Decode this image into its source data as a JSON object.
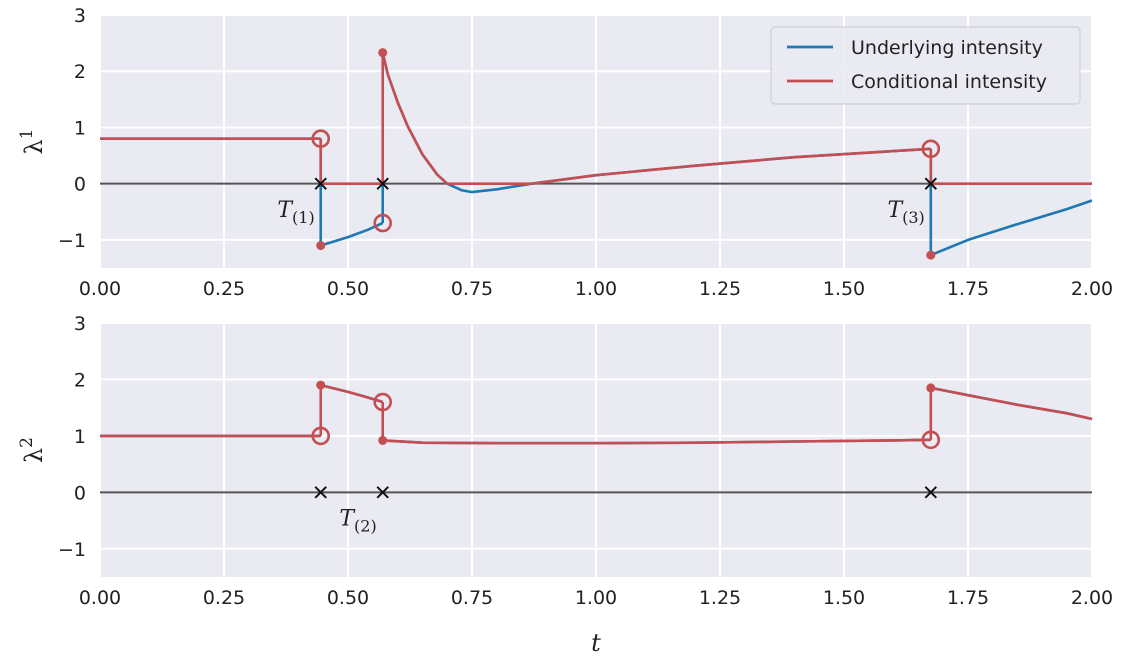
{
  "chart_data": [
    {
      "type": "line",
      "ylabel": "λ",
      "ylabel_sup": "1",
      "xlabel": "",
      "xlim": [
        0,
        2
      ],
      "ylim": [
        -1.5,
        3
      ],
      "xticks": [
        "0.00",
        "0.25",
        "0.50",
        "0.75",
        "1.00",
        "1.25",
        "1.50",
        "1.75",
        "2.00"
      ],
      "yticks": [
        "−1",
        "0",
        "1",
        "2",
        "3"
      ],
      "grid": true,
      "legend": {
        "placement": "top-right",
        "entries": [
          "Underlying intensity",
          "Conditional intensity"
        ]
      },
      "series": [
        {
          "name": "Underlying intensity",
          "color": "#1f77b4",
          "segments": [
            [
              [
                0,
                0.8
              ],
              [
                0.445,
                0.8
              ]
            ],
            [
              [
                0.445,
                -1.1
              ],
              [
                0.5,
                -0.95
              ],
              [
                0.54,
                -0.82
              ],
              [
                0.57,
                -0.7
              ]
            ],
            [
              [
                0.57,
                2.33
              ],
              [
                0.58,
                1.95
              ],
              [
                0.6,
                1.45
              ],
              [
                0.62,
                1.03
              ],
              [
                0.65,
                0.52
              ],
              [
                0.68,
                0.16
              ],
              [
                0.7,
                0.0
              ],
              [
                0.73,
                -0.12
              ],
              [
                0.75,
                -0.15
              ],
              [
                0.8,
                -0.1
              ],
              [
                0.87,
                0.0
              ],
              [
                1.0,
                0.15
              ],
              [
                1.2,
                0.32
              ],
              [
                1.4,
                0.47
              ],
              [
                1.6,
                0.58
              ],
              [
                1.675,
                0.62
              ]
            ],
            [
              [
                1.675,
                -1.27
              ],
              [
                1.75,
                -1.0
              ],
              [
                1.85,
                -0.72
              ],
              [
                1.95,
                -0.45
              ],
              [
                2.0,
                -0.3
              ]
            ]
          ]
        },
        {
          "name": "Conditional intensity",
          "color": "#c44e52",
          "segments": [
            [
              [
                0,
                0.8
              ],
              [
                0.445,
                0.8
              ]
            ],
            [
              [
                0.445,
                0
              ],
              [
                0.57,
                0
              ]
            ],
            [
              [
                0.57,
                2.33
              ],
              [
                0.58,
                1.95
              ],
              [
                0.6,
                1.45
              ],
              [
                0.62,
                1.03
              ],
              [
                0.65,
                0.52
              ],
              [
                0.68,
                0.16
              ],
              [
                0.7,
                0.0
              ],
              [
                0.87,
                0.0
              ],
              [
                1.0,
                0.15
              ],
              [
                1.2,
                0.32
              ],
              [
                1.4,
                0.47
              ],
              [
                1.6,
                0.58
              ],
              [
                1.675,
                0.62
              ]
            ],
            [
              [
                1.675,
                0
              ],
              [
                2.0,
                0
              ]
            ]
          ]
        }
      ],
      "jumps": [
        {
          "x": 0.445,
          "from": 0.8,
          "to": -1.1,
          "color": "#1f77b4"
        },
        {
          "x": 0.445,
          "from": 0.8,
          "to": 0,
          "color": "#c44e52"
        },
        {
          "x": 0.57,
          "from": -0.7,
          "to": 0,
          "color": "#1f77b4"
        },
        {
          "x": 0.57,
          "from": 0,
          "to": 2.33,
          "color": "#c44e52"
        },
        {
          "x": 1.675,
          "from": 0.62,
          "to": -1.27,
          "color": "#1f77b4"
        },
        {
          "x": 1.675,
          "from": 0.62,
          "to": 0,
          "color": "#c44e52"
        }
      ],
      "open_markers": [
        [
          0.445,
          0.8
        ],
        [
          0.57,
          -0.7
        ],
        [
          1.675,
          0.62
        ]
      ],
      "closed_markers": [
        [
          0.445,
          -1.1
        ],
        [
          0.57,
          2.33
        ],
        [
          1.675,
          -1.27
        ]
      ],
      "events": [
        0.445,
        0.57,
        1.675
      ],
      "annotations": [
        {
          "text": "T",
          "sub": "(1)",
          "x": 0.445,
          "y": -0.45
        },
        {
          "text": "T",
          "sub": "(3)",
          "x": 1.675,
          "y": -0.45
        }
      ]
    },
    {
      "type": "line",
      "ylabel": "λ",
      "ylabel_sup": "2",
      "xlabel": "t",
      "xlim": [
        0,
        2
      ],
      "ylim": [
        -1.5,
        3
      ],
      "xticks": [
        "0.00",
        "0.25",
        "0.50",
        "0.75",
        "1.00",
        "1.25",
        "1.50",
        "1.75",
        "2.00"
      ],
      "yticks": [
        "−1",
        "0",
        "1",
        "2",
        "3"
      ],
      "grid": true,
      "series": [
        {
          "name": "Underlying intensity",
          "color": "#1f77b4",
          "segments": [
            [
              [
                0,
                1.0
              ],
              [
                0.445,
                1.0
              ]
            ],
            [
              [
                0.445,
                1.9
              ],
              [
                0.5,
                1.78
              ],
              [
                0.54,
                1.68
              ],
              [
                0.57,
                1.6
              ]
            ],
            [
              [
                0.57,
                0.92
              ],
              [
                0.65,
                0.88
              ],
              [
                0.8,
                0.87
              ],
              [
                1.0,
                0.87
              ],
              [
                1.2,
                0.88
              ],
              [
                1.4,
                0.9
              ],
              [
                1.6,
                0.92
              ],
              [
                1.675,
                0.93
              ]
            ],
            [
              [
                1.675,
                1.85
              ],
              [
                1.75,
                1.72
              ],
              [
                1.85,
                1.55
              ],
              [
                1.95,
                1.4
              ],
              [
                2.0,
                1.3
              ]
            ]
          ]
        },
        {
          "name": "Conditional intensity",
          "color": "#c44e52",
          "segments": [
            [
              [
                0,
                1.0
              ],
              [
                0.445,
                1.0
              ]
            ],
            [
              [
                0.445,
                1.9
              ],
              [
                0.5,
                1.78
              ],
              [
                0.54,
                1.68
              ],
              [
                0.57,
                1.6
              ]
            ],
            [
              [
                0.57,
                0.92
              ],
              [
                0.65,
                0.88
              ],
              [
                0.8,
                0.87
              ],
              [
                1.0,
                0.87
              ],
              [
                1.2,
                0.88
              ],
              [
                1.4,
                0.9
              ],
              [
                1.6,
                0.92
              ],
              [
                1.675,
                0.93
              ]
            ],
            [
              [
                1.675,
                1.85
              ],
              [
                1.75,
                1.72
              ],
              [
                1.85,
                1.55
              ],
              [
                1.95,
                1.4
              ],
              [
                2.0,
                1.3
              ]
            ]
          ]
        }
      ],
      "jumps": [
        {
          "x": 0.445,
          "from": 1.0,
          "to": 1.9,
          "color": "#c44e52"
        },
        {
          "x": 0.57,
          "from": 1.6,
          "to": 0.92,
          "color": "#c44e52"
        },
        {
          "x": 1.675,
          "from": 0.93,
          "to": 1.85,
          "color": "#c44e52"
        }
      ],
      "open_markers": [
        [
          0.445,
          1.0
        ],
        [
          0.57,
          1.6
        ],
        [
          1.675,
          0.93
        ]
      ],
      "closed_markers": [
        [
          0.445,
          1.9
        ],
        [
          0.57,
          0.92
        ],
        [
          1.675,
          1.85
        ]
      ],
      "events": [
        0.445,
        0.57,
        1.675
      ],
      "annotations": [
        {
          "text": "T",
          "sub": "(2)",
          "x": 0.57,
          "y": -0.45
        }
      ]
    }
  ]
}
